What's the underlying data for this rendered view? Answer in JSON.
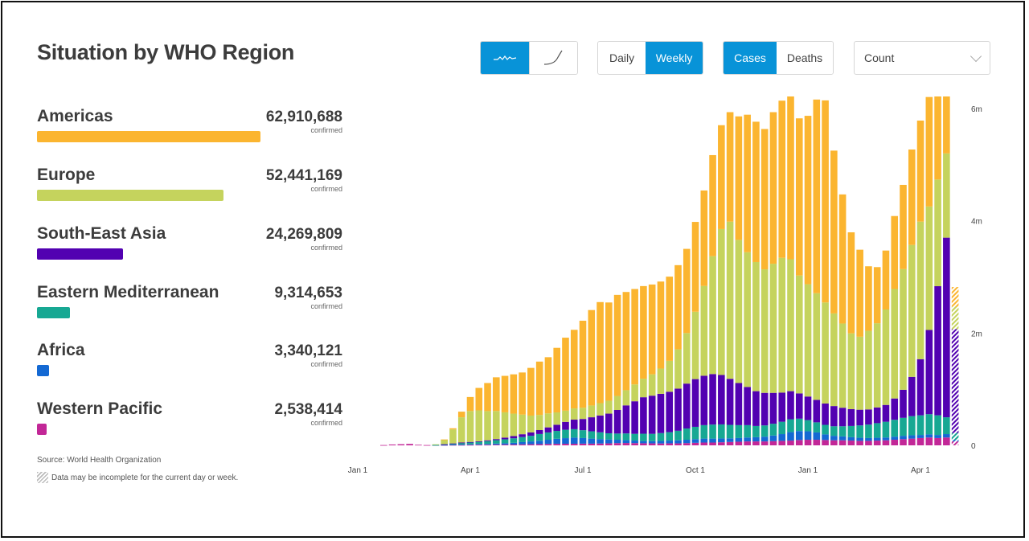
{
  "title": "Situation by WHO Region",
  "controls": {
    "chart_style": [
      {
        "name": "wave",
        "icon": "squiggle-line-icon",
        "active": true
      },
      {
        "name": "cumulative",
        "icon": "curve-line-icon",
        "active": false
      }
    ],
    "period": [
      {
        "label": "Daily",
        "active": false
      },
      {
        "label": "Weekly",
        "active": true
      }
    ],
    "metric": [
      {
        "label": "Cases",
        "active": true
      },
      {
        "label": "Deaths",
        "active": false
      }
    ],
    "scale_dropdown": {
      "value": "Count"
    }
  },
  "regions": [
    {
      "name": "Americas",
      "value": "62,910,688",
      "count": 62910688,
      "sub": "confirmed",
      "color": "#fbb530"
    },
    {
      "name": "Europe",
      "value": "52,441,169",
      "count": 52441169,
      "sub": "confirmed",
      "color": "#c5d35d"
    },
    {
      "name": "South-East Asia",
      "value": "24,269,809",
      "count": 24269809,
      "sub": "confirmed",
      "color": "#5201b1"
    },
    {
      "name": "Eastern Mediterranean",
      "value": "9,314,653",
      "count": 9314653,
      "sub": "confirmed",
      "color": "#17a893"
    },
    {
      "name": "Africa",
      "value": "3,340,121",
      "count": 3340121,
      "sub": "confirmed",
      "color": "#1469d3"
    },
    {
      "name": "Western Pacific",
      "value": "2,538,414",
      "count": 2538414,
      "sub": "confirmed",
      "color": "#c22797"
    }
  ],
  "footer": {
    "source": "Source: World Health Organization",
    "note": "Data may be incomplete for the current day or week."
  },
  "chart_data": {
    "type": "bar",
    "stacked": true,
    "title": "",
    "xlabel": "",
    "ylabel": "",
    "ylim": [
      0,
      6000000
    ],
    "yticks": [
      "0",
      "2m",
      "4m",
      "6m"
    ],
    "ytick_values": [
      0,
      2000000,
      4000000,
      6000000
    ],
    "xticks": [
      "Jan 1",
      "Apr 1",
      "Jul 1",
      "Oct 1",
      "Jan 1",
      "Apr 1"
    ],
    "xtick_week_index": [
      0,
      13,
      26,
      39,
      52,
      65
    ],
    "first_bar_week_index": 3,
    "last_bar_incomplete": true,
    "legend": "left",
    "series": [
      {
        "name": "Western Pacific",
        "color": "#c22797",
        "values": [
          0.005,
          0.015,
          0.02,
          0.025,
          0.01,
          0.005,
          0.005,
          0.007,
          0.007,
          0.008,
          0.009,
          0.01,
          0.01,
          0.012,
          0.013,
          0.015,
          0.018,
          0.02,
          0.022,
          0.025,
          0.027,
          0.028,
          0.028,
          0.03,
          0.03,
          0.032,
          0.035,
          0.04,
          0.042,
          0.04,
          0.037,
          0.035,
          0.033,
          0.035,
          0.035,
          0.04,
          0.045,
          0.05,
          0.05,
          0.055,
          0.06,
          0.065,
          0.07,
          0.07,
          0.07,
          0.075,
          0.08,
          0.085,
          0.095,
          0.1,
          0.1,
          0.095,
          0.09,
          0.09,
          0.085,
          0.08,
          0.08,
          0.085,
          0.09,
          0.1,
          0.11,
          0.12,
          0.13,
          0.14,
          0.13,
          0.14,
          0.07
        ]
      },
      {
        "name": "Africa",
        "color": "#1469d3",
        "values": [
          0,
          0,
          0,
          0,
          0,
          0,
          0.001,
          0.002,
          0.005,
          0.008,
          0.01,
          0.013,
          0.015,
          0.02,
          0.025,
          0.03,
          0.04,
          0.05,
          0.06,
          0.075,
          0.09,
          0.1,
          0.11,
          0.1,
          0.09,
          0.08,
          0.07,
          0.06,
          0.05,
          0.045,
          0.04,
          0.04,
          0.045,
          0.05,
          0.055,
          0.06,
          0.065,
          0.07,
          0.07,
          0.068,
          0.065,
          0.065,
          0.07,
          0.075,
          0.085,
          0.1,
          0.12,
          0.15,
          0.16,
          0.15,
          0.13,
          0.1,
          0.08,
          0.07,
          0.06,
          0.055,
          0.05,
          0.05,
          0.05,
          0.055,
          0.06,
          0.06,
          0.055,
          0.055,
          0.055,
          0.06,
          0.03
        ]
      },
      {
        "name": "Eastern Mediterranean",
        "color": "#17a893",
        "values": [
          0,
          0,
          0,
          0,
          0,
          0,
          0.002,
          0.01,
          0.02,
          0.03,
          0.035,
          0.04,
          0.05,
          0.06,
          0.07,
          0.08,
          0.09,
          0.1,
          0.12,
          0.13,
          0.14,
          0.15,
          0.15,
          0.14,
          0.13,
          0.12,
          0.11,
          0.11,
          0.12,
          0.12,
          0.13,
          0.13,
          0.14,
          0.15,
          0.17,
          0.2,
          0.22,
          0.24,
          0.25,
          0.25,
          0.24,
          0.23,
          0.22,
          0.2,
          0.2,
          0.21,
          0.22,
          0.23,
          0.22,
          0.2,
          0.18,
          0.17,
          0.17,
          0.18,
          0.2,
          0.22,
          0.24,
          0.26,
          0.28,
          0.3,
          0.32,
          0.34,
          0.35,
          0.36,
          0.35,
          0.3,
          0.12
        ]
      },
      {
        "name": "South-East Asia",
        "color": "#5201b1",
        "values": [
          0,
          0,
          0,
          0,
          0,
          0,
          0,
          0.001,
          0.002,
          0.004,
          0.007,
          0.01,
          0.015,
          0.02,
          0.03,
          0.04,
          0.05,
          0.06,
          0.07,
          0.09,
          0.11,
          0.14,
          0.17,
          0.2,
          0.25,
          0.3,
          0.35,
          0.42,
          0.5,
          0.58,
          0.65,
          0.68,
          0.7,
          0.72,
          0.75,
          0.8,
          0.85,
          0.88,
          0.9,
          0.88,
          0.82,
          0.75,
          0.68,
          0.62,
          0.58,
          0.55,
          0.52,
          0.5,
          0.45,
          0.42,
          0.4,
          0.38,
          0.36,
          0.33,
          0.3,
          0.28,
          0.27,
          0.28,
          0.3,
          0.38,
          0.5,
          0.7,
          1.0,
          1.5,
          2.3,
          3.2,
          1.85
        ]
      },
      {
        "name": "Europe",
        "color": "#c5d35d",
        "values": [
          0,
          0,
          0,
          0,
          0,
          0,
          0.01,
          0.08,
          0.25,
          0.45,
          0.55,
          0.55,
          0.52,
          0.5,
          0.45,
          0.4,
          0.35,
          0.3,
          0.27,
          0.25,
          0.22,
          0.2,
          0.2,
          0.2,
          0.21,
          0.22,
          0.23,
          0.25,
          0.27,
          0.3,
          0.33,
          0.38,
          0.45,
          0.55,
          0.7,
          0.9,
          1.2,
          1.6,
          2.1,
          2.6,
          2.8,
          2.55,
          2.4,
          2.3,
          2.2,
          2.3,
          2.4,
          2.35,
          2.1,
          2.0,
          1.9,
          1.8,
          1.65,
          1.5,
          1.35,
          1.3,
          1.4,
          1.5,
          1.7,
          1.95,
          2.15,
          2.35,
          2.45,
          2.2,
          1.9,
          1.5,
          0.4
        ]
      },
      {
        "name": "Americas",
        "color": "#fbb530",
        "values": [
          0,
          0,
          0,
          0,
          0,
          0,
          0,
          0.005,
          0.02,
          0.1,
          0.25,
          0.4,
          0.5,
          0.6,
          0.65,
          0.7,
          0.75,
          0.85,
          0.95,
          1.0,
          1.15,
          1.3,
          1.4,
          1.55,
          1.7,
          1.8,
          1.75,
          1.8,
          1.75,
          1.7,
          1.65,
          1.6,
          1.55,
          1.5,
          1.5,
          1.5,
          1.6,
          1.7,
          1.8,
          1.85,
          1.95,
          2.2,
          2.45,
          2.5,
          2.5,
          2.7,
          2.8,
          2.95,
          2.8,
          3.0,
          3.45,
          3.6,
          2.9,
          2.3,
          1.8,
          1.55,
          1.15,
          1.0,
          1.05,
          1.3,
          1.5,
          1.7,
          1.8,
          1.95,
          2.2,
          2.5,
          0.35
        ]
      }
    ]
  }
}
